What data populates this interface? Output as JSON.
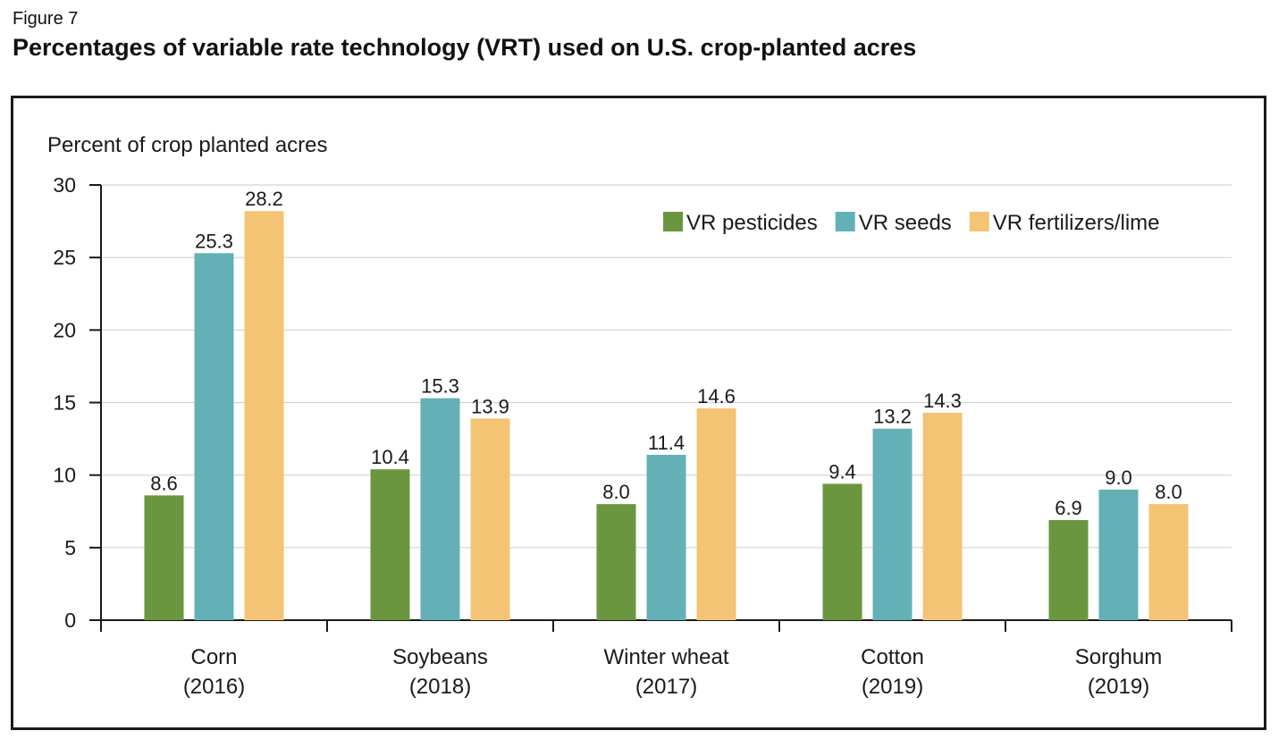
{
  "figure": {
    "label": "Figure 7",
    "title": "Percentages of variable rate technology (VRT) used on U.S. crop-planted acres"
  },
  "colors": {
    "VR pesticides": "#6a963f",
    "VR seeds": "#63b1b7",
    "VR fertilizers/lime": "#f3c474",
    "axis": "#1a1a1a",
    "grid": "#d4d4d4"
  },
  "chart_data": {
    "type": "bar",
    "ylabel": "Percent of crop planted acres",
    "ylim": [
      0,
      30
    ],
    "yticks": [
      0,
      5,
      10,
      15,
      20,
      25,
      30
    ],
    "grid": true,
    "legend_position": "top-right",
    "categories": [
      [
        "Corn",
        "(2016)"
      ],
      [
        "Soybeans",
        "(2018)"
      ],
      [
        "Winter wheat",
        "(2017)"
      ],
      [
        "Cotton",
        "(2019)"
      ],
      [
        "Sorghum",
        "(2019)"
      ]
    ],
    "series": [
      {
        "name": "VR pesticides",
        "values": [
          8.6,
          10.4,
          8.0,
          9.4,
          6.9
        ],
        "labels": [
          "8.6",
          "10.4",
          "8.0",
          "9.4",
          "6.9"
        ]
      },
      {
        "name": "VR seeds",
        "values": [
          25.3,
          15.3,
          11.4,
          13.2,
          9.0
        ],
        "labels": [
          "25.3",
          "15.3",
          "11.4",
          "13.2",
          "9.0"
        ]
      },
      {
        "name": "VR fertilizers/lime",
        "values": [
          28.2,
          13.9,
          14.6,
          14.3,
          8.0
        ],
        "labels": [
          "28.2",
          "13.9",
          "14.6",
          "14.3",
          "8.0"
        ]
      }
    ]
  }
}
